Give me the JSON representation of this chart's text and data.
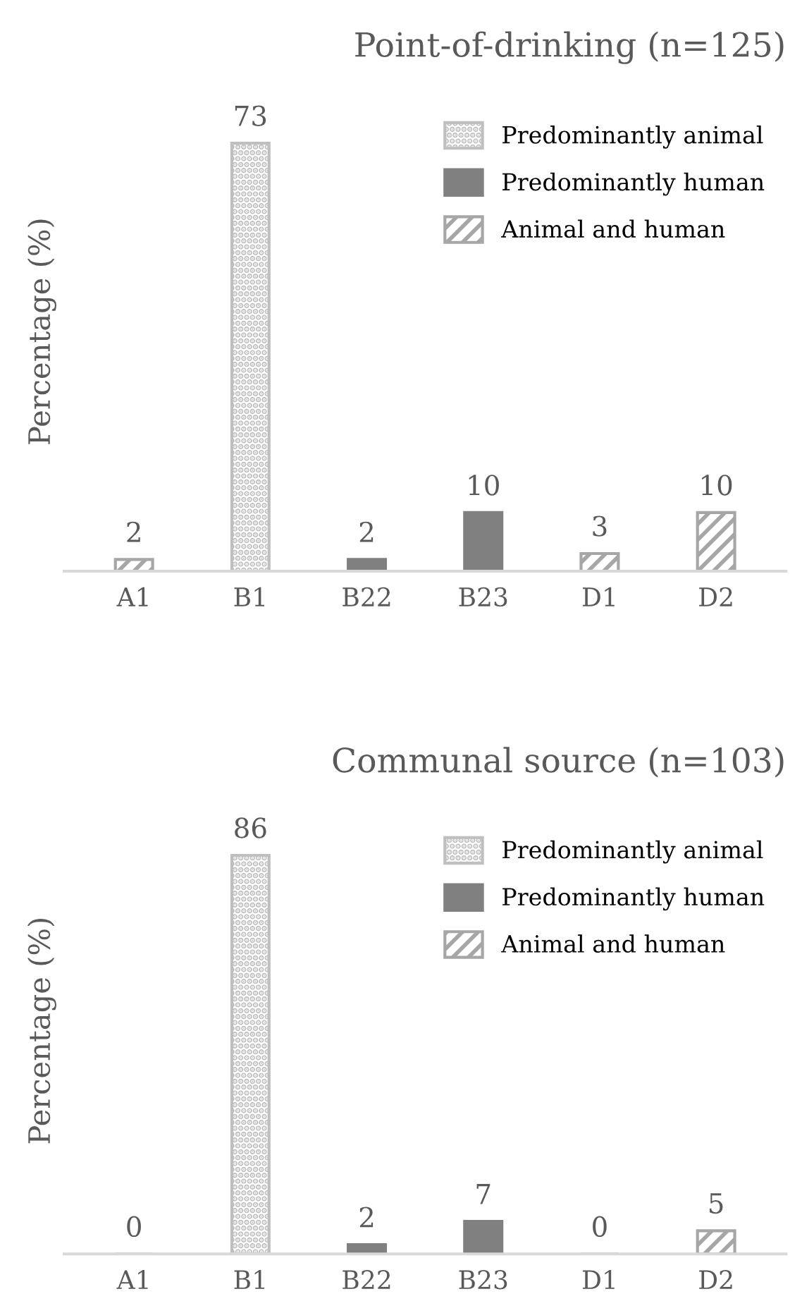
{
  "chart_data": [
    {
      "type": "bar",
      "title": "Point-of-drinking (n=125)",
      "ylabel": "Percentage (%)",
      "categories": [
        "A1",
        "B1",
        "B22",
        "B23",
        "D1",
        "D2"
      ],
      "series": [
        {
          "name": "Predominantly animal",
          "color": "#bfbfbf",
          "values": [
            null,
            73,
            null,
            null,
            null,
            null
          ]
        },
        {
          "name": "Predominantly human",
          "color": "#808080",
          "values": [
            null,
            null,
            2,
            10,
            null,
            null
          ]
        },
        {
          "name": "Animal and human",
          "color": "#a6a6a6",
          "values": [
            2,
            null,
            null,
            null,
            3,
            10
          ]
        }
      ],
      "data_labels": true,
      "legend": "top right",
      "grid": false
    },
    {
      "type": "bar",
      "title": "Communal source (n=103)",
      "ylabel": "Percentage (%)",
      "categories": [
        "A1",
        "B1",
        "B22",
        "B23",
        "D1",
        "D2"
      ],
      "series": [
        {
          "name": "Predominantly animal",
          "color": "#bfbfbf",
          "values": [
            null,
            86,
            null,
            null,
            null,
            null
          ]
        },
        {
          "name": "Predominantly human",
          "color": "#808080",
          "values": [
            null,
            null,
            2,
            7,
            null,
            null
          ]
        },
        {
          "name": "Animal and human",
          "color": "#a6a6a6",
          "values": [
            0,
            null,
            null,
            null,
            0,
            5
          ]
        }
      ],
      "data_labels": true,
      "legend": "top right",
      "grid": false
    }
  ]
}
